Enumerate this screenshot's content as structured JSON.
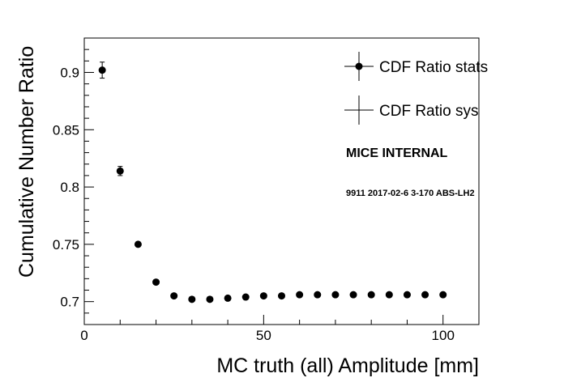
{
  "chart_data": {
    "type": "scatter",
    "xlabel": "MC truth (all) Amplitude [mm]",
    "ylabel": "Cumulative Number Ratio",
    "xlim": [
      0,
      110
    ],
    "ylim": [
      0.68,
      0.93
    ],
    "x_ticks": [
      0,
      50,
      100
    ],
    "y_ticks": [
      0.7,
      0.75,
      0.8,
      0.85,
      0.9
    ],
    "grid": false,
    "legend_position": "top-right",
    "series": [
      {
        "name": "CDF Ratio stats",
        "x": [
          5,
          10,
          15,
          20,
          25,
          30,
          35,
          40,
          45,
          50,
          55,
          60,
          65,
          70,
          75,
          80,
          85,
          90,
          95,
          100
        ],
        "y": [
          0.902,
          0.814,
          0.75,
          0.717,
          0.705,
          0.702,
          0.702,
          0.703,
          0.704,
          0.705,
          0.705,
          0.706,
          0.706,
          0.706,
          0.706,
          0.706,
          0.706,
          0.706,
          0.706,
          0.706
        ],
        "err": [
          0.007,
          0.004,
          0.002,
          0.002,
          0.001,
          0.001,
          0.001,
          0.001,
          0.001,
          0.001,
          0.001,
          0.001,
          0.001,
          0.001,
          0.001,
          0.001,
          0.001,
          0.001,
          0.001,
          0.001
        ]
      },
      {
        "name": "CDF Ratio sys"
      }
    ],
    "annotations": {
      "internal": "MICE INTERNAL",
      "run": "9911 2017-02-6 3-170 ABS-LH2"
    }
  }
}
